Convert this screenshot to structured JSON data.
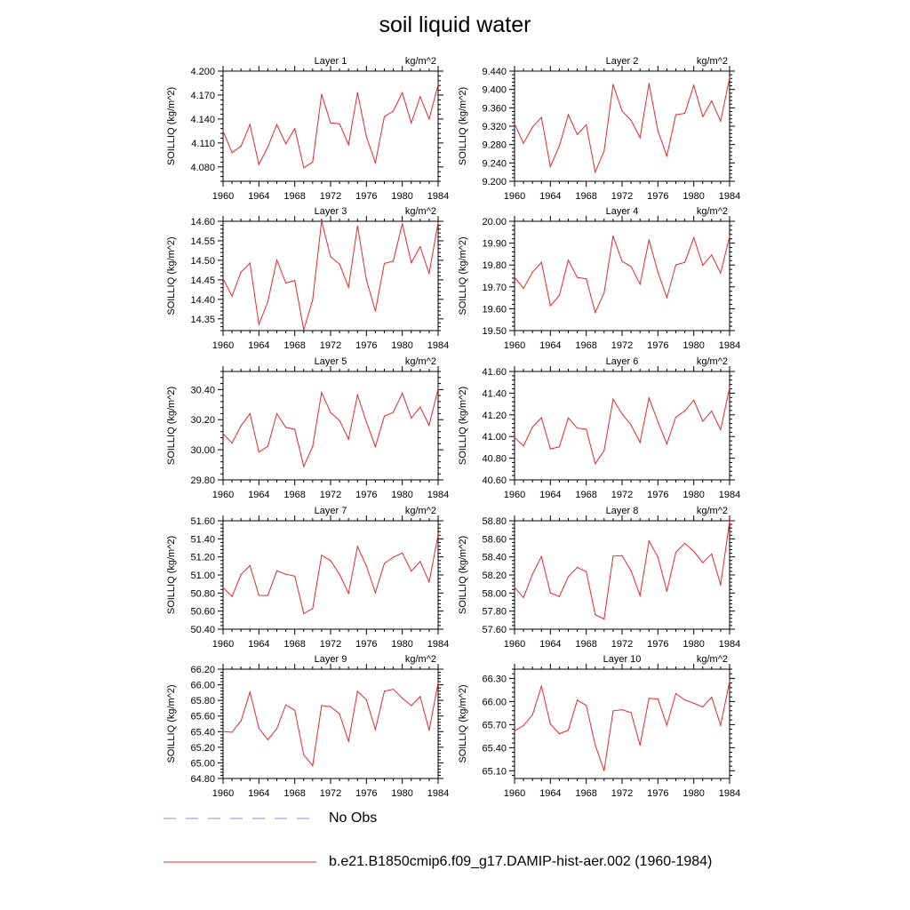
{
  "title": "soil liquid water",
  "legend": [
    {
      "label": "No Obs",
      "color": "#8a8ae6",
      "dash": true
    },
    {
      "label": "b.e21.B1850cmip6.f09_g17.DAMIP-hist-aer.002 (1960-1984)",
      "color": "#e8262a",
      "dash": false
    }
  ],
  "chart_data": [
    {
      "type": "line",
      "title": "Layer 1",
      "units": "kg/m^2",
      "ylabel": "SOILLIQ  (kg/m^2)",
      "xlim": [
        1960,
        1984
      ],
      "xticks": [
        1960,
        1964,
        1968,
        1972,
        1976,
        1980,
        1984
      ],
      "ylim": [
        4.062,
        4.2
      ],
      "yticks": [
        "4.080",
        "4.110",
        "4.140",
        "4.170",
        "4.200"
      ],
      "x": [
        1960,
        1961,
        1962,
        1963,
        1964,
        1965,
        1966,
        1967,
        1968,
        1969,
        1970,
        1971,
        1972,
        1973,
        1974,
        1975,
        1976,
        1977,
        1978,
        1979,
        1980,
        1981,
        1982,
        1983,
        1984
      ],
      "series": [
        {
          "values": [
            4.125,
            4.098,
            4.106,
            4.133,
            4.083,
            4.105,
            4.133,
            4.109,
            4.128,
            4.079,
            4.086,
            4.171,
            4.135,
            4.134,
            4.108,
            4.173,
            4.118,
            4.085,
            4.143,
            4.15,
            4.173,
            4.135,
            4.168,
            4.14,
            4.183
          ]
        }
      ]
    },
    {
      "type": "line",
      "title": "Layer 2",
      "units": "kg/m^2",
      "ylabel": "SOILLIQ  (kg/m^2)",
      "xlim": [
        1960,
        1984
      ],
      "xticks": [
        1960,
        1964,
        1968,
        1972,
        1976,
        1980,
        1984
      ],
      "ylim": [
        9.2,
        9.44
      ],
      "yticks": [
        "9.200",
        "9.240",
        "9.280",
        "9.320",
        "9.360",
        "9.400",
        "9.440"
      ],
      "x": [
        1960,
        1961,
        1962,
        1963,
        1964,
        1965,
        1966,
        1967,
        1968,
        1969,
        1970,
        1971,
        1972,
        1973,
        1974,
        1975,
        1976,
        1977,
        1978,
        1979,
        1980,
        1981,
        1982,
        1983,
        1984
      ],
      "series": [
        {
          "values": [
            9.325,
            9.283,
            9.318,
            9.339,
            9.232,
            9.277,
            9.345,
            9.302,
            9.323,
            9.22,
            9.266,
            9.411,
            9.353,
            9.333,
            9.295,
            9.413,
            9.31,
            9.255,
            9.345,
            9.348,
            9.409,
            9.341,
            9.375,
            9.331,
            9.425
          ]
        }
      ]
    },
    {
      "type": "line",
      "title": "Layer 3",
      "units": "kg/m^2",
      "ylabel": "SOILLIQ  (kg/m^2)",
      "xlim": [
        1960,
        1984
      ],
      "xticks": [
        1960,
        1964,
        1968,
        1972,
        1976,
        1980,
        1984
      ],
      "ylim": [
        14.32,
        14.6
      ],
      "yticks": [
        "14.35",
        "14.40",
        "14.45",
        "14.50",
        "14.55",
        "14.60"
      ],
      "x": [
        1960,
        1961,
        1962,
        1963,
        1964,
        1965,
        1966,
        1967,
        1968,
        1969,
        1970,
        1971,
        1972,
        1973,
        1974,
        1975,
        1976,
        1977,
        1978,
        1979,
        1980,
        1981,
        1982,
        1983,
        1984
      ],
      "series": [
        {
          "values": [
            14.453,
            14.408,
            14.47,
            14.493,
            14.336,
            14.394,
            14.501,
            14.442,
            14.448,
            14.322,
            14.398,
            14.601,
            14.509,
            14.49,
            14.431,
            14.588,
            14.45,
            14.37,
            14.492,
            14.498,
            14.594,
            14.494,
            14.535,
            14.466,
            14.597
          ]
        }
      ]
    },
    {
      "type": "line",
      "title": "Layer 4",
      "units": "kg/m^2",
      "ylabel": "SOILLIQ  (kg/m^2)",
      "xlim": [
        1960,
        1984
      ],
      "xticks": [
        1960,
        1964,
        1968,
        1972,
        1976,
        1980,
        1984
      ],
      "ylim": [
        19.5,
        20.0
      ],
      "yticks": [
        "19.50",
        "19.60",
        "19.70",
        "19.80",
        "19.90",
        "20.00"
      ],
      "x": [
        1960,
        1961,
        1962,
        1963,
        1964,
        1965,
        1966,
        1967,
        1968,
        1969,
        1970,
        1971,
        1972,
        1973,
        1974,
        1975,
        1976,
        1977,
        1978,
        1979,
        1980,
        1981,
        1982,
        1983,
        1984
      ],
      "series": [
        {
          "values": [
            19.744,
            19.693,
            19.767,
            19.812,
            19.614,
            19.66,
            19.822,
            19.743,
            19.737,
            19.583,
            19.673,
            19.933,
            19.817,
            19.793,
            19.712,
            19.915,
            19.768,
            19.65,
            19.801,
            19.812,
            19.925,
            19.799,
            19.846,
            19.763,
            19.931
          ]
        }
      ]
    },
    {
      "type": "line",
      "title": "Layer 5",
      "units": "kg/m^2",
      "ylabel": "SOILLIQ  (kg/m^2)",
      "xlim": [
        1960,
        1984
      ],
      "xticks": [
        1960,
        1964,
        1968,
        1972,
        1976,
        1980,
        1984
      ],
      "ylim": [
        29.8,
        30.52
      ],
      "yticks": [
        "29.80",
        "30.00",
        "30.20",
        "30.40"
      ],
      "x": [
        1960,
        1961,
        1962,
        1963,
        1964,
        1965,
        1966,
        1967,
        1968,
        1969,
        1970,
        1971,
        1972,
        1973,
        1974,
        1975,
        1976,
        1977,
        1978,
        1979,
        1980,
        1981,
        1982,
        1983,
        1984
      ],
      "series": [
        {
          "values": [
            30.107,
            30.045,
            30.159,
            30.239,
            29.985,
            30.023,
            30.24,
            30.149,
            30.136,
            29.89,
            30.021,
            30.381,
            30.248,
            30.194,
            30.071,
            30.364,
            30.184,
            30.021,
            30.223,
            30.249,
            30.376,
            30.211,
            30.284,
            30.163,
            30.405
          ]
        }
      ]
    },
    {
      "type": "line",
      "title": "Layer 6",
      "units": "kg/m^2",
      "ylabel": "SOILLIQ  (kg/m^2)",
      "xlim": [
        1960,
        1984
      ],
      "xticks": [
        1960,
        1964,
        1968,
        1972,
        1976,
        1980,
        1984
      ],
      "ylim": [
        40.6,
        41.6
      ],
      "yticks": [
        "40.60",
        "40.80",
        "41.00",
        "41.20",
        "41.40",
        "41.60"
      ],
      "x": [
        1960,
        1961,
        1962,
        1963,
        1964,
        1965,
        1966,
        1967,
        1968,
        1969,
        1970,
        1971,
        1972,
        1973,
        1974,
        1975,
        1976,
        1977,
        1978,
        1979,
        1980,
        1981,
        1982,
        1983,
        1984
      ],
      "series": [
        {
          "values": [
            40.992,
            40.912,
            41.088,
            41.173,
            40.886,
            40.905,
            41.171,
            41.078,
            41.067,
            40.749,
            40.87,
            41.344,
            41.208,
            41.107,
            40.945,
            41.355,
            41.137,
            40.932,
            41.179,
            41.236,
            41.335,
            41.142,
            41.234,
            41.062,
            41.451
          ]
        }
      ]
    },
    {
      "type": "line",
      "title": "Layer 7",
      "units": "kg/m^2",
      "ylabel": "SOILLIQ  (kg/m^2)",
      "xlim": [
        1960,
        1984
      ],
      "xticks": [
        1960,
        1964,
        1968,
        1972,
        1976,
        1980,
        1984
      ],
      "ylim": [
        50.4,
        51.6
      ],
      "yticks": [
        "50.40",
        "50.60",
        "50.80",
        "51.00",
        "51.20",
        "51.40",
        "51.60"
      ],
      "x": [
        1960,
        1961,
        1962,
        1963,
        1964,
        1965,
        1966,
        1967,
        1968,
        1969,
        1970,
        1971,
        1972,
        1973,
        1974,
        1975,
        1976,
        1977,
        1978,
        1979,
        1980,
        1981,
        1982,
        1983,
        1984
      ],
      "series": [
        {
          "values": [
            50.86,
            50.762,
            51.005,
            51.103,
            50.775,
            50.773,
            51.046,
            51.008,
            50.987,
            50.573,
            50.628,
            51.218,
            51.158,
            51.007,
            50.796,
            51.315,
            51.099,
            50.803,
            51.128,
            51.197,
            51.243,
            51.043,
            51.15,
            50.922,
            51.445
          ]
        }
      ]
    },
    {
      "type": "line",
      "title": "Layer 8",
      "units": "kg/m^2",
      "ylabel": "SOILLIQ  (kg/m^2)",
      "xlim": [
        1960,
        1984
      ],
      "xticks": [
        1960,
        1964,
        1968,
        1972,
        1976,
        1980,
        1984
      ],
      "ylim": [
        57.6,
        58.8
      ],
      "yticks": [
        "57.60",
        "57.80",
        "58.00",
        "58.20",
        "58.40",
        "58.60",
        "58.80"
      ],
      "x": [
        1960,
        1961,
        1962,
        1963,
        1964,
        1965,
        1966,
        1967,
        1968,
        1969,
        1970,
        1971,
        1972,
        1973,
        1974,
        1975,
        1976,
        1977,
        1978,
        1979,
        1980,
        1981,
        1982,
        1983,
        1984
      ],
      "series": [
        {
          "values": [
            58.061,
            57.95,
            58.209,
            58.404,
            58.002,
            57.962,
            58.181,
            58.284,
            58.237,
            57.761,
            57.712,
            58.409,
            58.413,
            58.247,
            57.973,
            58.576,
            58.399,
            58.02,
            58.451,
            58.55,
            58.462,
            58.337,
            58.433,
            58.091,
            58.795
          ]
        }
      ]
    },
    {
      "type": "line",
      "title": "Layer 9",
      "units": "kg/m^2",
      "ylabel": "SOILLIQ  (kg/m^2)",
      "xlim": [
        1960,
        1984
      ],
      "xticks": [
        1960,
        1964,
        1968,
        1972,
        1976,
        1980,
        1984
      ],
      "ylim": [
        64.8,
        66.2
      ],
      "yticks": [
        "64.80",
        "65.00",
        "65.20",
        "65.40",
        "65.60",
        "65.80",
        "66.00",
        "66.20"
      ],
      "x": [
        1960,
        1961,
        1962,
        1963,
        1964,
        1965,
        1966,
        1967,
        1968,
        1969,
        1970,
        1971,
        1972,
        1973,
        1974,
        1975,
        1976,
        1977,
        1978,
        1979,
        1980,
        1981,
        1982,
        1983,
        1984
      ],
      "series": [
        {
          "values": [
            65.402,
            65.392,
            65.539,
            65.906,
            65.444,
            65.296,
            65.44,
            65.743,
            65.674,
            65.103,
            64.964,
            65.734,
            65.72,
            65.626,
            65.273,
            65.916,
            65.809,
            65.426,
            65.917,
            65.944,
            65.829,
            65.733,
            65.848,
            65.417,
            66.025
          ]
        }
      ]
    },
    {
      "type": "line",
      "title": "Layer 10",
      "units": "kg/m^2",
      "ylabel": "SOILLIQ  (kg/m^2)",
      "xlim": [
        1960,
        1984
      ],
      "xticks": [
        1960,
        1964,
        1968,
        1972,
        1976,
        1980,
        1984
      ],
      "ylim": [
        65.0,
        66.42
      ],
      "yticks": [
        "65.10",
        "65.40",
        "65.70",
        "66.00",
        "66.30"
      ],
      "x": [
        1960,
        1961,
        1962,
        1963,
        1964,
        1965,
        1966,
        1967,
        1968,
        1969,
        1970,
        1971,
        1972,
        1973,
        1974,
        1975,
        1976,
        1977,
        1978,
        1979,
        1980,
        1981,
        1982,
        1983,
        1984
      ],
      "series": [
        {
          "values": [
            65.616,
            65.688,
            65.828,
            66.2,
            65.707,
            65.582,
            65.627,
            66.018,
            65.949,
            65.435,
            65.102,
            65.878,
            65.893,
            65.856,
            65.433,
            66.041,
            66.033,
            65.693,
            66.104,
            66.02,
            65.978,
            65.929,
            66.055,
            65.691,
            66.262
          ]
        }
      ]
    }
  ]
}
